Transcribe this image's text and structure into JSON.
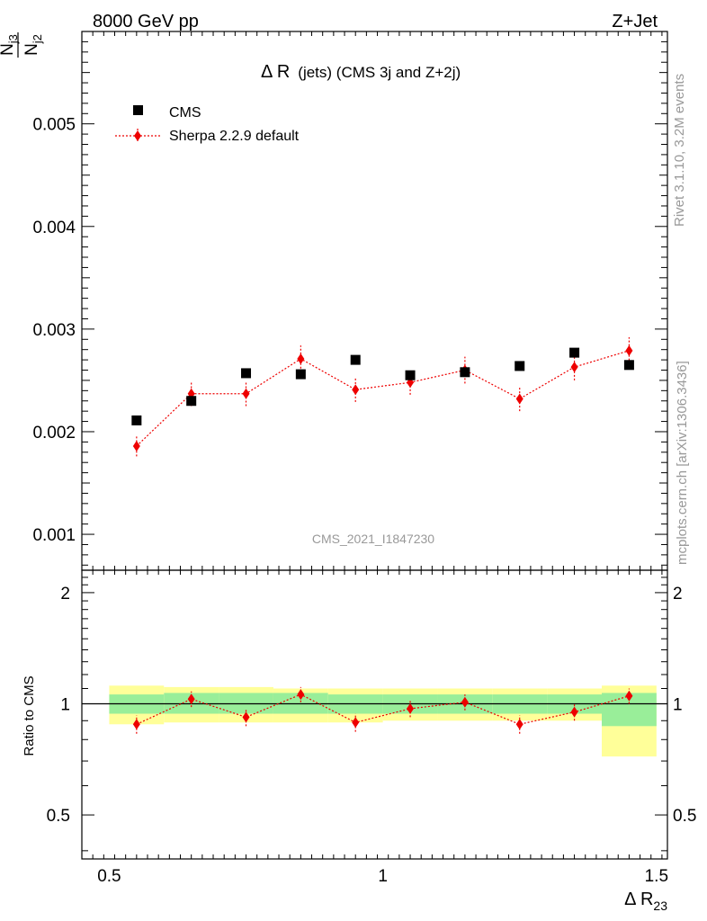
{
  "header": {
    "left": "8000 GeV pp",
    "right": "Z+Jet"
  },
  "side_labels": {
    "rivet": "Rivet 3.1.10,  3.2M events",
    "mcplots": "mcplots.cern.ch [arXiv:1306.3436]"
  },
  "chart_data": {
    "type": "scatter",
    "title_main": "Δ R",
    "title_suffix": "(jets) (CMS 3j and Z+2j)",
    "watermark": "CMS_2021_I1847230",
    "ylabel_num": "N",
    "ylabel_num_sub": "j3",
    "ylabel_den": "N",
    "ylabel_den_sub": "j2",
    "xlabel": "Δ R",
    "xlabel_sub": "23",
    "ratio_ylabel": "Ratio to CMS",
    "xlim": [
      0.45,
      1.52
    ],
    "ylim_main": [
      0.00065,
      0.0059
    ],
    "ylim_ratio": [
      0.38,
      2.3
    ],
    "x_ticks": [
      0.5,
      1,
      1.5
    ],
    "x_tick_labels": [
      "0.5",
      "1",
      "1.5"
    ],
    "main_y_ticks": [
      0.001,
      0.002,
      0.003,
      0.004,
      0.005
    ],
    "main_y_tick_labels": [
      "0.001",
      "0.002",
      "0.003",
      "0.004",
      "0.005"
    ],
    "ratio_y_ticks": [
      0.5,
      1,
      2
    ],
    "ratio_y_tick_labels": [
      "0.5",
      "1",
      "2"
    ],
    "bin_edges": [
      0.5,
      0.6,
      0.7,
      0.8,
      0.9,
      1.0,
      1.1,
      1.2,
      1.3,
      1.4,
      1.5
    ],
    "x": [
      0.55,
      0.65,
      0.75,
      0.85,
      0.95,
      1.05,
      1.15,
      1.25,
      1.35,
      1.45
    ],
    "legend_position": "top-left",
    "series": [
      {
        "name": "CMS",
        "color": "#000000",
        "marker": "square",
        "values": [
          0.00211,
          0.0023,
          0.00257,
          0.00256,
          0.0027,
          0.00255,
          0.00258,
          0.00264,
          0.00277,
          0.00265
        ],
        "ratio_band_inner": [
          [
            0.94,
            1.06
          ],
          [
            0.94,
            1.07
          ],
          [
            0.94,
            1.07
          ],
          [
            0.94,
            1.07
          ],
          [
            0.94,
            1.06
          ],
          [
            0.94,
            1.06
          ],
          [
            0.94,
            1.06
          ],
          [
            0.94,
            1.06
          ],
          [
            0.94,
            1.06
          ],
          [
            0.87,
            1.07
          ]
        ],
        "ratio_band_outer": [
          [
            0.88,
            1.12
          ],
          [
            0.89,
            1.11
          ],
          [
            0.89,
            1.11
          ],
          [
            0.89,
            1.1
          ],
          [
            0.89,
            1.1
          ],
          [
            0.9,
            1.1
          ],
          [
            0.9,
            1.1
          ],
          [
            0.9,
            1.1
          ],
          [
            0.9,
            1.1
          ],
          [
            0.72,
            1.12
          ]
        ]
      },
      {
        "name": "Sherpa 2.2.9 default",
        "color": "#ee0000",
        "marker": "diamond",
        "values": [
          0.00186,
          0.00237,
          0.00237,
          0.00271,
          0.00241,
          0.00248,
          0.0026,
          0.00232,
          0.00263,
          0.00279
        ],
        "errors": [
          0.0001,
          0.00012,
          0.00012,
          0.00013,
          0.00012,
          0.00012,
          0.00013,
          0.00012,
          0.00013,
          0.00013
        ],
        "ratio": [
          0.88,
          1.03,
          0.92,
          1.06,
          0.89,
          0.97,
          1.01,
          0.88,
          0.95,
          1.05
        ],
        "ratio_errors": [
          0.05,
          0.05,
          0.05,
          0.05,
          0.05,
          0.05,
          0.05,
          0.05,
          0.05,
          0.05
        ]
      }
    ]
  }
}
